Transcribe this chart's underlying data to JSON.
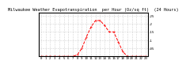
{
  "title": "Milwaukee Weather Evapotranspiration  per Hour (Oz/sq ft)  (24 Hours)",
  "hours": [
    0,
    1,
    2,
    3,
    4,
    5,
    6,
    7,
    8,
    9,
    10,
    11,
    12,
    13,
    14,
    15,
    16,
    17,
    18,
    19,
    20,
    21,
    22,
    23
  ],
  "values": [
    0,
    0,
    0,
    0,
    0,
    0,
    0,
    0,
    0.01,
    0.05,
    0.12,
    0.18,
    0.22,
    0.22,
    0.19,
    0.15,
    0.15,
    0.09,
    0.03,
    0,
    0,
    0,
    0,
    0
  ],
  "line_color": "#ff0000",
  "line_style": "--",
  "line_width": 0.7,
  "grid_color": "#999999",
  "grid_style": ":",
  "bg_color": "#ffffff",
  "ylim": [
    0,
    0.27
  ],
  "ytick_values": [
    0.05,
    0.1,
    0.15,
    0.2,
    0.25
  ],
  "ytick_labels": [
    ".05",
    ".1",
    ".15",
    ".2",
    ".25"
  ],
  "title_fontsize": 3.8,
  "tick_fontsize": 3.0
}
